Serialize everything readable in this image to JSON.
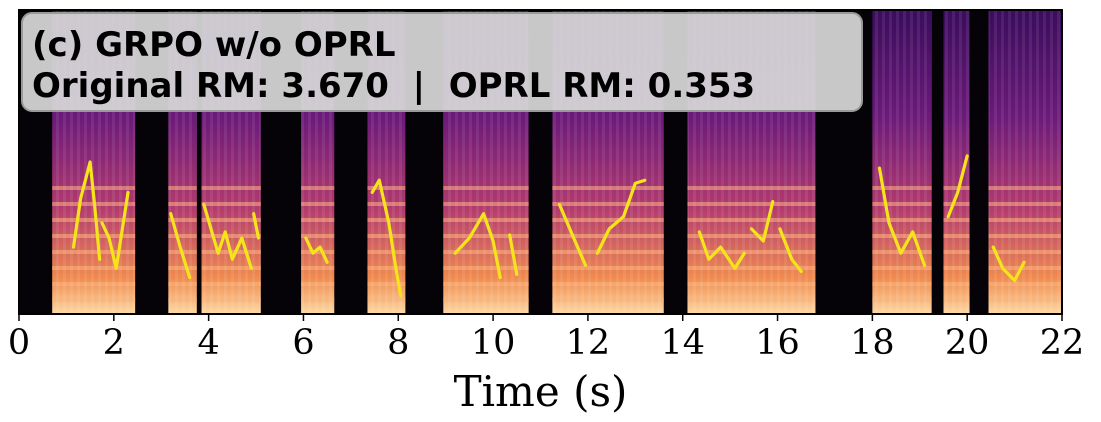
{
  "chart_data": {
    "type": "heatmap",
    "panel_label": "(c) GRPO w/o OPRL",
    "annotation": "Original RM: 3.670  |  OPRL RM: 0.353",
    "xlabel": "Time (s)",
    "xlim": [
      0,
      22
    ],
    "xticks": [
      "0",
      "2",
      "4",
      "6",
      "8",
      "10",
      "12",
      "14",
      "16",
      "18",
      "20",
      "22"
    ],
    "xtick_values": [
      0,
      2,
      4,
      6,
      8,
      10,
      12,
      14,
      16,
      18,
      20,
      22
    ],
    "grid": false,
    "colormap": "magma",
    "pitch_contour_color": "#f5e41a",
    "speech_segments_s": [
      [
        0.7,
        2.45
      ],
      [
        3.15,
        3.75
      ],
      [
        3.85,
        5.1
      ],
      [
        5.95,
        6.65
      ],
      [
        7.35,
        8.15
      ],
      [
        8.95,
        10.75
      ],
      [
        11.25,
        13.6
      ],
      [
        14.1,
        16.8
      ],
      [
        18.0,
        19.25
      ],
      [
        19.5,
        20.05
      ],
      [
        20.45,
        22.0
      ]
    ],
    "pitch_contour_segments": [
      [
        [
          1.15,
          0.22
        ],
        [
          1.3,
          0.38
        ],
        [
          1.5,
          0.5
        ],
        [
          1.6,
          0.35
        ],
        [
          1.7,
          0.18
        ]
      ],
      [
        [
          1.75,
          0.3
        ],
        [
          1.9,
          0.25
        ],
        [
          2.05,
          0.15
        ],
        [
          2.2,
          0.3
        ],
        [
          2.3,
          0.4
        ]
      ],
      [
        [
          3.2,
          0.33
        ],
        [
          3.4,
          0.22
        ],
        [
          3.6,
          0.12
        ]
      ],
      [
        [
          3.9,
          0.36
        ],
        [
          4.05,
          0.28
        ],
        [
          4.2,
          0.2
        ],
        [
          4.35,
          0.27
        ],
        [
          4.5,
          0.18
        ],
        [
          4.7,
          0.25
        ],
        [
          4.9,
          0.15
        ]
      ],
      [
        [
          4.95,
          0.33
        ],
        [
          5.05,
          0.25
        ]
      ],
      [
        [
          6.05,
          0.25
        ],
        [
          6.2,
          0.2
        ],
        [
          6.35,
          0.22
        ],
        [
          6.5,
          0.17
        ]
      ],
      [
        [
          7.45,
          0.4
        ],
        [
          7.6,
          0.44
        ],
        [
          7.8,
          0.3
        ],
        [
          7.95,
          0.15
        ],
        [
          8.05,
          0.06
        ]
      ],
      [
        [
          9.2,
          0.2
        ],
        [
          9.5,
          0.25
        ],
        [
          9.8,
          0.33
        ],
        [
          10.0,
          0.24
        ],
        [
          10.15,
          0.12
        ]
      ],
      [
        [
          10.35,
          0.26
        ],
        [
          10.5,
          0.13
        ]
      ],
      [
        [
          11.4,
          0.36
        ],
        [
          11.7,
          0.25
        ],
        [
          11.95,
          0.16
        ]
      ],
      [
        [
          12.2,
          0.2
        ],
        [
          12.45,
          0.28
        ],
        [
          12.75,
          0.32
        ],
        [
          13.0,
          0.43
        ],
        [
          13.2,
          0.44
        ]
      ],
      [
        [
          14.35,
          0.27
        ],
        [
          14.55,
          0.18
        ],
        [
          14.8,
          0.22
        ],
        [
          15.1,
          0.15
        ],
        [
          15.3,
          0.2
        ]
      ],
      [
        [
          15.45,
          0.28
        ],
        [
          15.7,
          0.24
        ],
        [
          15.9,
          0.37
        ]
      ],
      [
        [
          16.05,
          0.28
        ],
        [
          16.3,
          0.18
        ],
        [
          16.5,
          0.14
        ]
      ],
      [
        [
          18.15,
          0.48
        ],
        [
          18.35,
          0.3
        ],
        [
          18.6,
          0.2
        ],
        [
          18.85,
          0.27
        ],
        [
          19.1,
          0.16
        ]
      ],
      [
        [
          19.6,
          0.32
        ],
        [
          19.8,
          0.4
        ],
        [
          20.0,
          0.52
        ]
      ],
      [
        [
          20.55,
          0.22
        ],
        [
          20.75,
          0.15
        ],
        [
          21.0,
          0.11
        ],
        [
          21.2,
          0.17
        ]
      ]
    ]
  }
}
